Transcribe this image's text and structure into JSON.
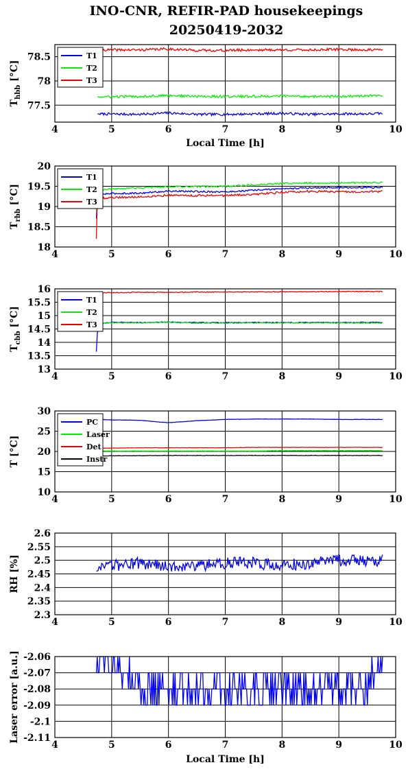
{
  "title": {
    "line1": "INO-CNR, REFIR-PAD housekeepings",
    "line2": "20250419-2032"
  },
  "colors": {
    "blue": "#0000ee",
    "green": "#00ee00",
    "red": "#ee0000",
    "black": "#000000"
  },
  "chart_data": [
    {
      "type": "line",
      "ylabel": "Thbb [°C]",
      "xlabel": "Local Time [h]",
      "xlim": [
        4,
        10
      ],
      "ylim": [
        77.15,
        78.75
      ],
      "xticks": [
        "4",
        "5",
        "6",
        "7",
        "8",
        "9",
        "10"
      ],
      "yticks": [
        77.5,
        78,
        78.5
      ],
      "ytick_labels": [
        "77.5",
        "78",
        "78.5"
      ],
      "grid": true,
      "legend": "top-left",
      "series": [
        {
          "name": "T1",
          "color": "#0000ee",
          "x": [
            4.75,
            5.5,
            6.0,
            6.5,
            7.0,
            7.5,
            8.0,
            8.5,
            9.0,
            9.5,
            9.77
          ],
          "y": [
            77.32,
            77.31,
            77.34,
            77.31,
            77.31,
            77.32,
            77.33,
            77.31,
            77.32,
            77.32,
            77.33
          ],
          "noise": 0.025
        },
        {
          "name": "T2",
          "color": "#00ee00",
          "x": [
            4.75,
            5.5,
            6.0,
            6.5,
            7.0,
            7.5,
            8.0,
            8.5,
            9.0,
            9.5,
            9.77
          ],
          "y": [
            77.67,
            77.68,
            77.7,
            77.68,
            77.68,
            77.68,
            77.69,
            77.68,
            77.68,
            77.69,
            77.69
          ],
          "noise": 0.025
        },
        {
          "name": "T3",
          "color": "#ee0000",
          "x": [
            4.75,
            5.5,
            6.0,
            6.5,
            7.0,
            7.5,
            8.0,
            8.5,
            9.0,
            9.5,
            9.77
          ],
          "y": [
            78.64,
            78.64,
            78.66,
            78.63,
            78.63,
            78.64,
            78.64,
            78.64,
            78.65,
            78.64,
            78.64
          ],
          "noise": 0.025
        }
      ]
    },
    {
      "type": "line",
      "ylabel": "Trbb [°C]",
      "xlabel": "",
      "xlim": [
        4,
        10
      ],
      "ylim": [
        18,
        20
      ],
      "xticks": [
        "4",
        "5",
        "6",
        "7",
        "8",
        "9",
        "10"
      ],
      "yticks": [
        18,
        18.5,
        19,
        19.5,
        20
      ],
      "ytick_labels": [
        "18",
        "18.5",
        "19",
        "19.5",
        "20"
      ],
      "grid": true,
      "legend": "top-left",
      "series": [
        {
          "name": "T1",
          "color": "#0000ee",
          "x": [
            4.73,
            4.74,
            4.76,
            5.0,
            5.5,
            6.0,
            6.5,
            7.0,
            7.5,
            8.0,
            8.5,
            9.0,
            9.5,
            9.77
          ],
          "y": [
            18.7,
            19.1,
            19.3,
            19.32,
            19.33,
            19.38,
            19.37,
            19.36,
            19.4,
            19.44,
            19.46,
            19.47,
            19.47,
            19.47
          ],
          "noise": 0.02
        },
        {
          "name": "T2",
          "color": "#00ee00",
          "x": [
            4.73,
            4.74,
            4.76,
            5.0,
            5.5,
            6.0,
            6.5,
            7.0,
            7.5,
            8.0,
            8.5,
            9.0,
            9.5,
            9.77
          ],
          "y": [
            18.9,
            19.3,
            19.4,
            19.43,
            19.46,
            19.49,
            19.49,
            19.5,
            19.53,
            19.57,
            19.58,
            19.58,
            19.59,
            19.59
          ],
          "noise": 0.02
        },
        {
          "name": "T3",
          "color": "#ee0000",
          "x": [
            4.73,
            4.74,
            4.76,
            5.0,
            5.5,
            6.0,
            6.5,
            7.0,
            7.5,
            8.0,
            8.5,
            9.0,
            9.5,
            9.77
          ],
          "y": [
            18.2,
            19.0,
            19.2,
            19.22,
            19.24,
            19.28,
            19.27,
            19.27,
            19.3,
            19.35,
            19.37,
            19.37,
            19.37,
            19.37
          ],
          "noise": 0.025
        }
      ]
    },
    {
      "type": "line",
      "ylabel": "Tcbb [°C]",
      "xlabel": "",
      "xlim": [
        4,
        10
      ],
      "ylim": [
        13,
        16
      ],
      "xticks": [
        "4",
        "5",
        "6",
        "7",
        "8",
        "9",
        "10"
      ],
      "yticks": [
        13,
        13.5,
        14,
        14.5,
        15,
        15.5,
        16
      ],
      "ytick_labels": [
        "13",
        "13.5",
        "14",
        "14.5",
        "15",
        "15.5",
        "16"
      ],
      "grid": true,
      "legend": "top-left",
      "series": [
        {
          "name": "T1",
          "color": "#0000ee",
          "x": [
            4.73,
            4.74,
            4.76,
            5.0,
            5.5,
            6.0,
            6.5,
            7.0,
            7.5,
            8.0,
            8.5,
            9.0,
            9.5,
            9.77
          ],
          "y": [
            13.65,
            14.1,
            14.7,
            14.75,
            14.74,
            14.76,
            14.74,
            14.74,
            14.74,
            14.74,
            14.74,
            14.74,
            14.75,
            14.74
          ],
          "noise": 0.015
        },
        {
          "name": "T2",
          "color": "#00ee00",
          "x": [
            4.73,
            4.74,
            4.76,
            5.0,
            5.5,
            6.0,
            6.5,
            7.0,
            7.5,
            8.0,
            8.5,
            9.0,
            9.5,
            9.77
          ],
          "y": [
            14.4,
            14.6,
            14.7,
            14.73,
            14.73,
            14.75,
            14.72,
            14.72,
            14.73,
            14.72,
            14.73,
            14.72,
            14.72,
            14.72
          ],
          "noise": 0.02
        },
        {
          "name": "T3",
          "color": "#ee0000",
          "x": [
            4.76,
            5.0,
            5.5,
            6.0,
            6.5,
            7.0,
            7.5,
            8.0,
            8.5,
            9.0,
            9.5,
            9.77
          ],
          "y": [
            15.85,
            15.86,
            15.87,
            15.87,
            15.88,
            15.88,
            15.88,
            15.89,
            15.89,
            15.9,
            15.9,
            15.9
          ],
          "noise": 0.015
        }
      ]
    },
    {
      "type": "line",
      "ylabel": "T [°C]",
      "xlabel": "",
      "xlim": [
        4,
        10
      ],
      "ylim": [
        10,
        30
      ],
      "xticks": [
        "4",
        "5",
        "6",
        "7",
        "8",
        "9",
        "10"
      ],
      "yticks": [
        10,
        15,
        20,
        25,
        30
      ],
      "ytick_labels": [
        "10",
        "15",
        "20",
        "25",
        "30"
      ],
      "grid": true,
      "legend": "top-left",
      "series": [
        {
          "name": "PC",
          "color": "#0000ee",
          "x": [
            4.75,
            5.0,
            5.5,
            5.8,
            6.0,
            6.2,
            6.5,
            7.0,
            7.5,
            8.0,
            8.5,
            9.0,
            9.5,
            9.77
          ],
          "y": [
            27.9,
            27.8,
            27.7,
            27.3,
            27.1,
            27.3,
            27.6,
            27.9,
            28.0,
            28.0,
            28.0,
            27.9,
            27.9,
            27.9
          ],
          "noise": 0.03
        },
        {
          "name": "Laser",
          "color": "#00ee00",
          "x": [
            4.75,
            5.5,
            6.0,
            6.5,
            7.0,
            7.5,
            8.0,
            8.5,
            9.0,
            9.5,
            9.77
          ],
          "y": [
            20.1,
            20.1,
            20.1,
            20.1,
            20.1,
            20.1,
            20.2,
            20.2,
            20.2,
            20.2,
            20.2
          ],
          "noise": 0.04
        },
        {
          "name": "Det",
          "color": "#ee0000",
          "x": [
            4.75,
            5.5,
            6.0,
            6.5,
            7.0,
            7.5,
            8.0,
            8.5,
            9.0,
            9.5,
            9.77
          ],
          "y": [
            20.8,
            20.9,
            20.9,
            20.9,
            20.9,
            21.0,
            21.0,
            21.0,
            21.0,
            21.0,
            21.0
          ],
          "noise": 0.04
        },
        {
          "name": "Instr",
          "color": "#000000",
          "x": [
            4.75,
            5.5,
            6.0,
            6.5,
            7.0,
            7.5,
            8.0,
            8.5,
            9.0,
            9.5,
            9.77
          ],
          "y": [
            18.9,
            18.95,
            19.0,
            19.0,
            19.0,
            19.0,
            19.0,
            19.0,
            19.0,
            19.0,
            19.0
          ],
          "noise": 0.04
        }
      ]
    },
    {
      "type": "line",
      "ylabel": "RH [%]",
      "xlabel": "",
      "xlim": [
        4,
        10
      ],
      "ylim": [
        2.3,
        2.6
      ],
      "xticks": [
        "4",
        "5",
        "6",
        "7",
        "8",
        "9",
        "10"
      ],
      "yticks": [
        2.3,
        2.35,
        2.4,
        2.45,
        2.5,
        2.55,
        2.6
      ],
      "ytick_labels": [
        "2.3",
        "2.35",
        "2.4",
        "2.45",
        "2.5",
        "2.55",
        "2.6"
      ],
      "grid": true,
      "legend": "none",
      "series": [
        {
          "name": "",
          "color": "#0000ee",
          "x": [
            4.73,
            5.0,
            5.5,
            6.0,
            6.5,
            7.0,
            7.5,
            8.0,
            8.5,
            9.0,
            9.5,
            9.77
          ],
          "y": [
            2.46,
            2.48,
            2.49,
            2.48,
            2.48,
            2.49,
            2.49,
            2.48,
            2.49,
            2.5,
            2.5,
            2.5
          ],
          "noise": 0.022
        }
      ]
    },
    {
      "type": "line",
      "ylabel": "Laser error [a.u.]",
      "xlabel": "Local Time [h]",
      "xlim": [
        4,
        10
      ],
      "ylim": [
        -2.11,
        -2.06
      ],
      "xticks": [
        "4",
        "5",
        "6",
        "7",
        "8",
        "9",
        "10"
      ],
      "yticks": [
        -2.11,
        -2.1,
        -2.09,
        -2.08,
        -2.07,
        -2.06
      ],
      "ytick_labels": [
        "-2.11",
        "-2.1",
        "-2.09",
        "-2.08",
        "-2.07",
        "-2.06"
      ],
      "grid": true,
      "legend": "none",
      "series": [
        {
          "name": "",
          "color": "#0000ee",
          "x": [
            4.73,
            5.5,
            6.5,
            7.5,
            8.5,
            9.5,
            9.77
          ],
          "y": [
            -2.06,
            -2.08,
            -2.08,
            -2.08,
            -2.08,
            -2.08,
            -2.06
          ],
          "levels": [
            -2.06,
            -2.07,
            -2.08,
            -2.09,
            -2.1
          ],
          "noise": 0.01
        }
      ]
    }
  ]
}
